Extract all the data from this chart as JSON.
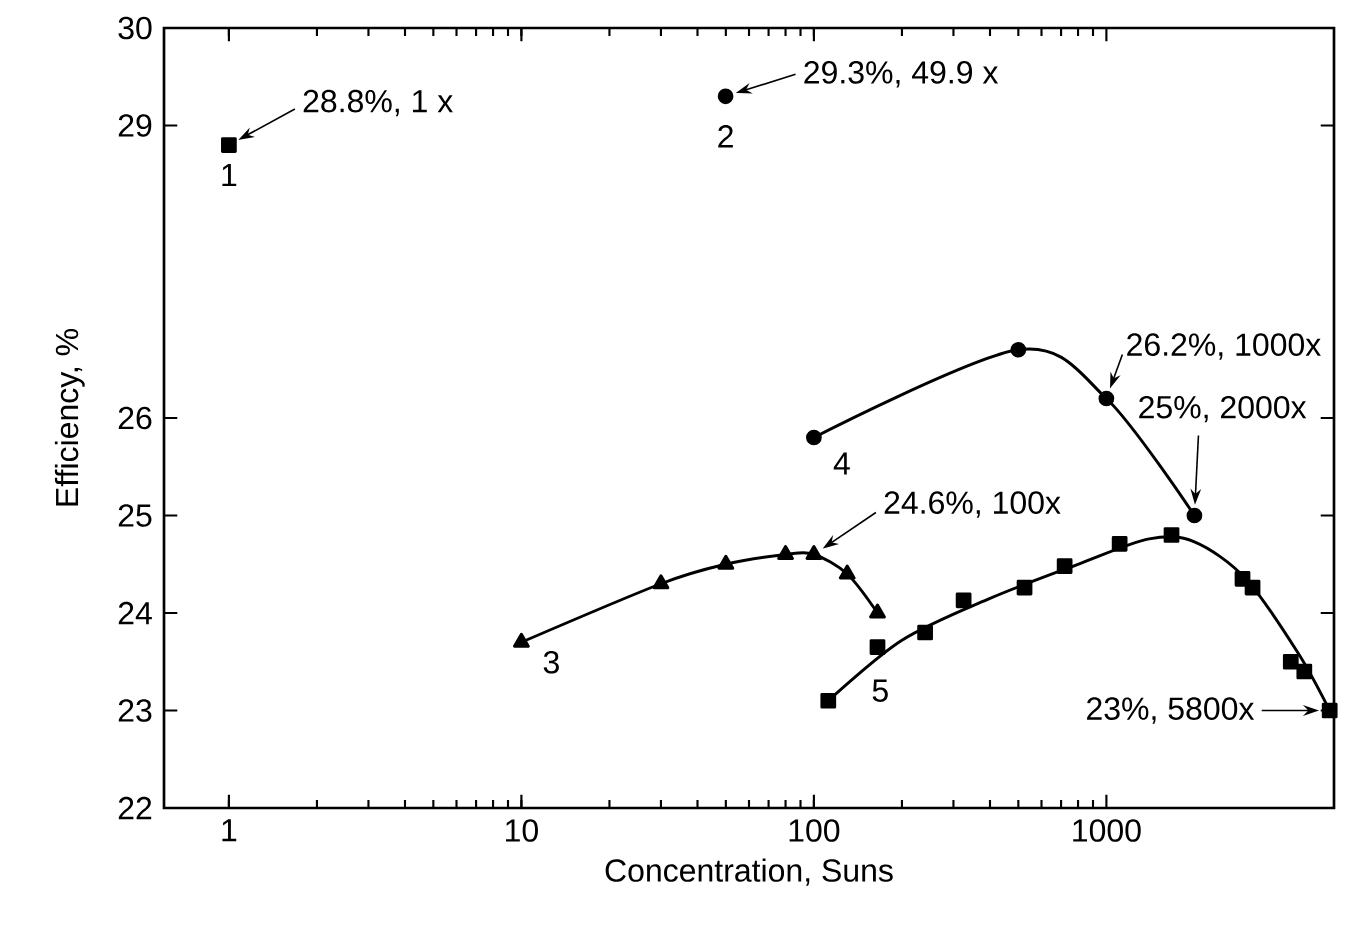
{
  "chart_data": {
    "type": "scatter",
    "log": "x",
    "xlabel": "Concentration, Suns",
    "ylabel": "Efficiency, %",
    "xlim": [
      0.6,
      6000
    ],
    "xticks": [
      1,
      10,
      100,
      1000
    ],
    "ylim": [
      22,
      30
    ],
    "yticks": [
      22,
      23,
      24,
      25,
      26,
      29,
      30
    ],
    "series": [
      {
        "color": "#000000",
        "marker": "square",
        "x": [
          1
        ],
        "values": [
          28.8
        ]
      },
      {
        "color": "#000000",
        "marker": "circle",
        "x": [
          49.9
        ],
        "values": [
          29.3
        ]
      },
      {
        "name": "3",
        "type": "line",
        "color": "#000000",
        "marker": "triangle",
        "x": [
          10,
          30,
          50,
          80,
          100,
          130,
          165
        ],
        "values": [
          23.7,
          24.3,
          24.5,
          24.6,
          24.6,
          24.4,
          24.0
        ]
      },
      {
        "name": "4",
        "type": "line",
        "color": "#000000",
        "marker": "circle",
        "x": [
          100,
          500,
          1000,
          2000
        ],
        "values": [
          25.8,
          26.7,
          26.2,
          25.0
        ]
      },
      {
        "name": "5",
        "color": "#000000",
        "marker": "square",
        "x": [
          112,
          165,
          240,
          325,
          525,
          720,
          1110,
          1670,
          2920,
          3160,
          4270,
          4750,
          5800
        ],
        "values": [
          23.1,
          23.65,
          23.8,
          24.13,
          24.26,
          24.48,
          24.71,
          24.8,
          24.35,
          24.26,
          23.5,
          23.4,
          23.0
        ]
      },
      {
        "type": "line",
        "color": "#000000",
        "marker": "none",
        "x": [
          112,
          200,
          400,
          800,
          1400,
          2000,
          3000,
          4500,
          5800
        ],
        "values": [
          23.1,
          23.72,
          24.15,
          24.5,
          24.76,
          24.73,
          24.35,
          23.6,
          23.0
        ]
      }
    ],
    "annotations": [
      {
        "text": "28.8%, 1 x",
        "x": 1,
        "y": 28.8
      },
      {
        "text": "29.3%, 49.9 x",
        "x": 49.9,
        "y": 29.3
      },
      {
        "text": "24.6%, 100x",
        "x": 100,
        "y": 24.6
      },
      {
        "text": "26.2%, 1000x",
        "x": 1000,
        "y": 26.2
      },
      {
        "text": "25%, 2000x",
        "x": 2000,
        "y": 25
      },
      {
        "text": "23%, 5800x",
        "x": 5800,
        "y": 23
      },
      {
        "text": "1",
        "x": 1,
        "y": 28.8
      },
      {
        "text": "2",
        "x": 49.9,
        "y": 29.3
      }
    ]
  }
}
